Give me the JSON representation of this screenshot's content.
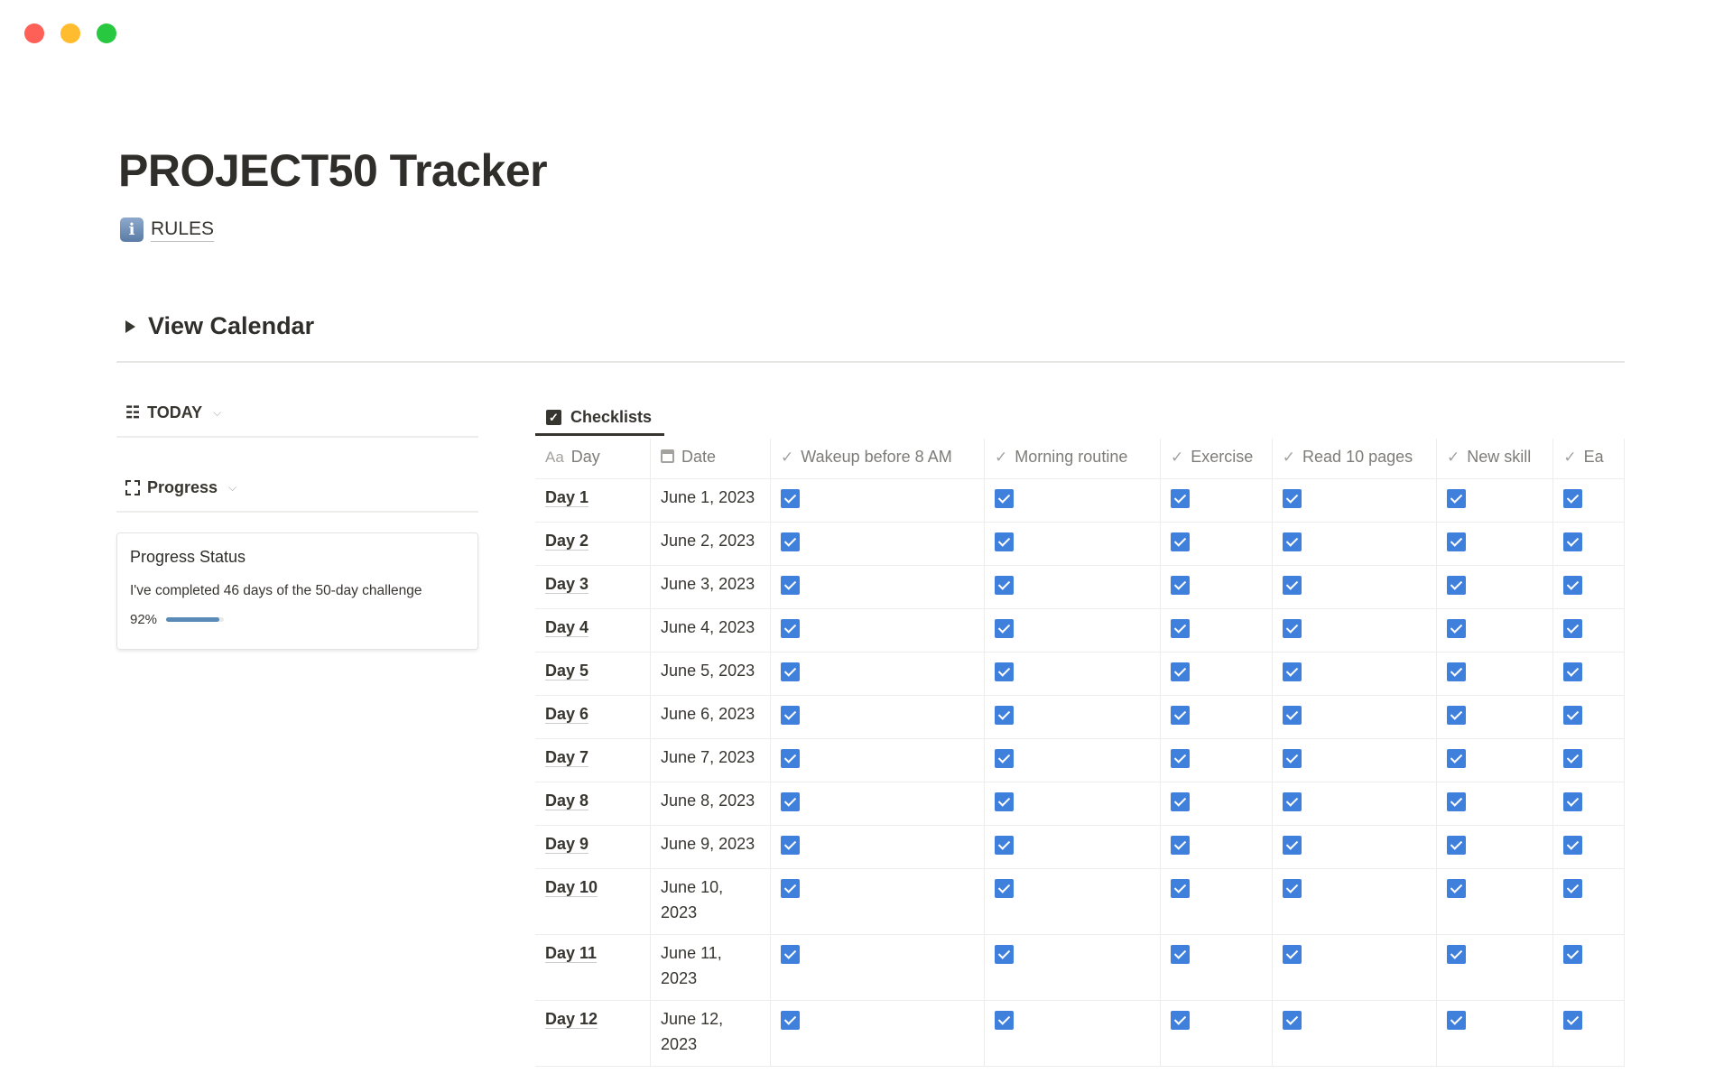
{
  "window": {
    "controls": [
      {
        "name": "close",
        "color": "#fe5f57"
      },
      {
        "name": "minimize",
        "color": "#febc2e"
      },
      {
        "name": "maximize",
        "color": "#28c840"
      }
    ]
  },
  "page": {
    "title": "PROJECT50 Tracker",
    "rules_link": "RULES",
    "toggle_label": "View Calendar"
  },
  "left": {
    "today_label": "TODAY",
    "progress_label": "Progress",
    "card": {
      "title": "Progress Status",
      "text": "I've completed 46 days of the 50-day challenge",
      "percent_label": "92%",
      "percent": 92
    }
  },
  "table": {
    "tab_label": "Checklists",
    "columns": [
      {
        "icon": "text-icon",
        "icon_text": "Aa",
        "label": "Day"
      },
      {
        "icon": "calendar-icon",
        "label": "Date"
      },
      {
        "icon": "check-icon",
        "label": "Wakeup before 8 AM"
      },
      {
        "icon": "check-icon",
        "label": "Morning routine"
      },
      {
        "icon": "check-icon",
        "label": "Exercise"
      },
      {
        "icon": "check-icon",
        "label": "Read 10 pages"
      },
      {
        "icon": "check-icon",
        "label": "New skill"
      },
      {
        "icon": "check-icon",
        "label": "Ea"
      }
    ],
    "checkbox_color": "#3f80dd",
    "rows": [
      {
        "day": "Day 1",
        "date": "June 1, 2023",
        "checks": [
          true,
          true,
          true,
          true,
          true,
          true
        ]
      },
      {
        "day": "Day 2",
        "date": "June 2, 2023",
        "checks": [
          true,
          true,
          true,
          true,
          true,
          true
        ]
      },
      {
        "day": "Day 3",
        "date": "June 3, 2023",
        "checks": [
          true,
          true,
          true,
          true,
          true,
          true
        ]
      },
      {
        "day": "Day 4",
        "date": "June 4, 2023",
        "checks": [
          true,
          true,
          true,
          true,
          true,
          true
        ]
      },
      {
        "day": "Day 5",
        "date": "June 5, 2023",
        "checks": [
          true,
          true,
          true,
          true,
          true,
          true
        ]
      },
      {
        "day": "Day 6",
        "date": "June 6, 2023",
        "checks": [
          true,
          true,
          true,
          true,
          true,
          true
        ]
      },
      {
        "day": "Day 7",
        "date": "June 7, 2023",
        "checks": [
          true,
          true,
          true,
          true,
          true,
          true
        ]
      },
      {
        "day": "Day 8",
        "date": "June 8, 2023",
        "checks": [
          true,
          true,
          true,
          true,
          true,
          true
        ]
      },
      {
        "day": "Day 9",
        "date": "June 9, 2023",
        "checks": [
          true,
          true,
          true,
          true,
          true,
          true
        ]
      },
      {
        "day": "Day 10",
        "date": "June 10, 2023",
        "checks": [
          true,
          true,
          true,
          true,
          true,
          true
        ]
      },
      {
        "day": "Day 11",
        "date": "June 11, 2023",
        "checks": [
          true,
          true,
          true,
          true,
          true,
          true
        ]
      },
      {
        "day": "Day 12",
        "date": "June 12, 2023",
        "checks": [
          true,
          true,
          true,
          true,
          true,
          true
        ]
      }
    ]
  }
}
